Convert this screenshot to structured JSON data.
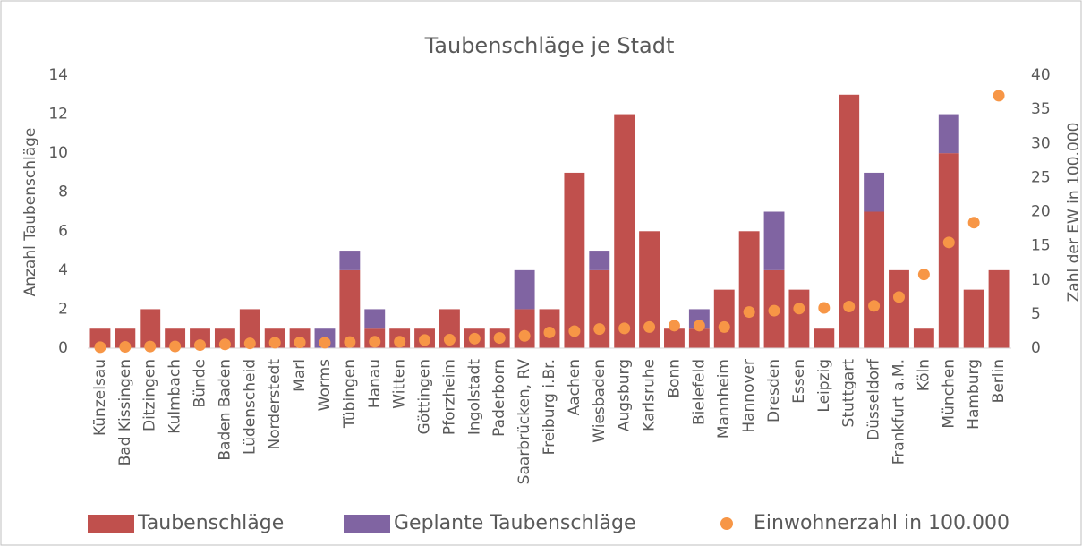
{
  "chart_data": {
    "type": "bar",
    "stacked": true,
    "title": "Taubenschläge je Stadt",
    "ylabel": "Anzahl Taubenschläge",
    "y2label": "Zahl der EW in 100.000",
    "categories": [
      "Künzelsau",
      "Bad Kissingen",
      "Ditzingen",
      "Kulmbach",
      "Bünde",
      "Baden Baden",
      "Lüdenscheid",
      "Norderstedt",
      "Marl",
      "Worms",
      "Tübingen",
      "Hanau",
      "Witten",
      "Göttingen",
      "Pforzheim",
      "Ingolstadt",
      "Paderborn",
      "Saarbrücken, RV",
      "Freiburg i.Br.",
      "Aachen",
      "Wiesbaden",
      "Augsburg",
      "Karlsruhe",
      "Bonn",
      "Bielefeld",
      "Mannheim",
      "Hannover",
      "Dresden",
      "Essen",
      "Leipzig",
      "Stuttgart",
      "Düsseldorf",
      "Frankfurt a.M.",
      "Köln",
      "München",
      "Hamburg",
      "Berlin"
    ],
    "series": [
      {
        "name": "Taubenschläge",
        "type": "bar",
        "color": "#c0504d",
        "values": [
          1,
          1,
          2,
          1,
          1,
          1,
          2,
          1,
          1,
          0,
          4,
          1,
          1,
          1,
          2,
          1,
          1,
          2,
          2,
          9,
          4,
          12,
          6,
          1,
          1,
          3,
          6,
          4,
          3,
          1,
          13,
          7,
          4,
          1,
          10,
          3,
          4
        ]
      },
      {
        "name": "Geplante Taubenschläge",
        "type": "bar",
        "color": "#8064a2",
        "values": [
          0,
          0,
          0,
          0,
          0,
          0,
          0,
          0,
          0,
          1,
          1,
          1,
          0,
          0,
          0,
          0,
          0,
          2,
          0,
          0,
          1,
          0,
          0,
          0,
          1,
          0,
          0,
          3,
          0,
          0,
          0,
          2,
          0,
          0,
          2,
          0,
          0
        ]
      },
      {
        "name": "Einwohnerzahl in 100.000",
        "type": "scatter",
        "axis": "y2",
        "color": "#f79646",
        "values": [
          0.15,
          0.2,
          0.25,
          0.26,
          0.45,
          0.55,
          0.7,
          0.8,
          0.85,
          0.8,
          0.9,
          0.95,
          0.95,
          1.2,
          1.25,
          1.4,
          1.5,
          1.8,
          2.3,
          2.5,
          2.8,
          2.9,
          3.1,
          3.3,
          3.3,
          3.1,
          5.3,
          5.5,
          5.8,
          5.9,
          6.1,
          6.2,
          7.5,
          10.8,
          15.5,
          18.4,
          37
        ]
      }
    ],
    "ylim": [
      0,
      14
    ],
    "yticks": [
      0,
      2,
      4,
      6,
      8,
      10,
      12,
      14
    ],
    "y2lim": [
      0,
      40
    ],
    "y2ticks": [
      0,
      5,
      10,
      15,
      20,
      25,
      30,
      35,
      40
    ],
    "grid": false,
    "legend": "bottom"
  }
}
